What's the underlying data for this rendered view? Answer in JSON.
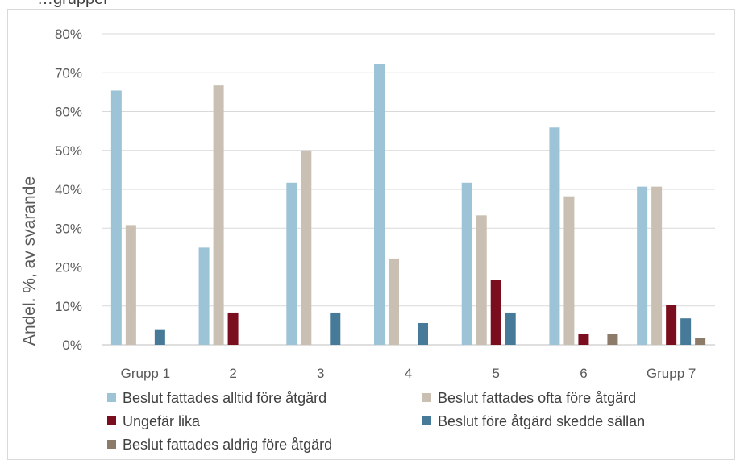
{
  "chart_data": {
    "type": "bar",
    "title": "",
    "ylabel": "Andel. %, av svarande",
    "xlabel": "",
    "ylim": [
      0,
      80
    ],
    "yticks": [
      0,
      10,
      20,
      30,
      40,
      50,
      60,
      70,
      80
    ],
    "ytick_labels": [
      "0%",
      "10%",
      "20%",
      "30%",
      "40%",
      "50%",
      "60%",
      "70%",
      "80%"
    ],
    "categories": [
      "Grupp 1",
      "2",
      "3",
      "4",
      "5",
      "6",
      "Grupp 7"
    ],
    "grid": true,
    "legend_position": "bottom",
    "series": [
      {
        "name": "Beslut fattades alltid före åtgärd",
        "color": "#9dc3d6",
        "values": [
          65.4,
          25.0,
          41.7,
          72.2,
          41.7,
          55.9,
          40.7
        ]
      },
      {
        "name": "Beslut fattades ofta före åtgärd",
        "color": "#c9bfb2",
        "values": [
          30.8,
          66.7,
          50.0,
          22.2,
          33.3,
          38.2,
          40.7
        ]
      },
      {
        "name": "Ungefär lika",
        "color": "#7b0e1e",
        "values": [
          0,
          8.3,
          0,
          0,
          16.7,
          2.9,
          10.2
        ]
      },
      {
        "name": "Beslut före åtgärd skedde sällan",
        "color": "#467a98",
        "values": [
          3.8,
          0,
          8.3,
          5.6,
          8.3,
          0,
          6.8
        ]
      },
      {
        "name": "Beslut fattades aldrig före åtgärd",
        "color": "#8b7b68",
        "values": [
          0,
          0,
          0,
          0,
          0,
          2.9,
          1.7
        ]
      }
    ]
  },
  "top_text": "…grupper"
}
